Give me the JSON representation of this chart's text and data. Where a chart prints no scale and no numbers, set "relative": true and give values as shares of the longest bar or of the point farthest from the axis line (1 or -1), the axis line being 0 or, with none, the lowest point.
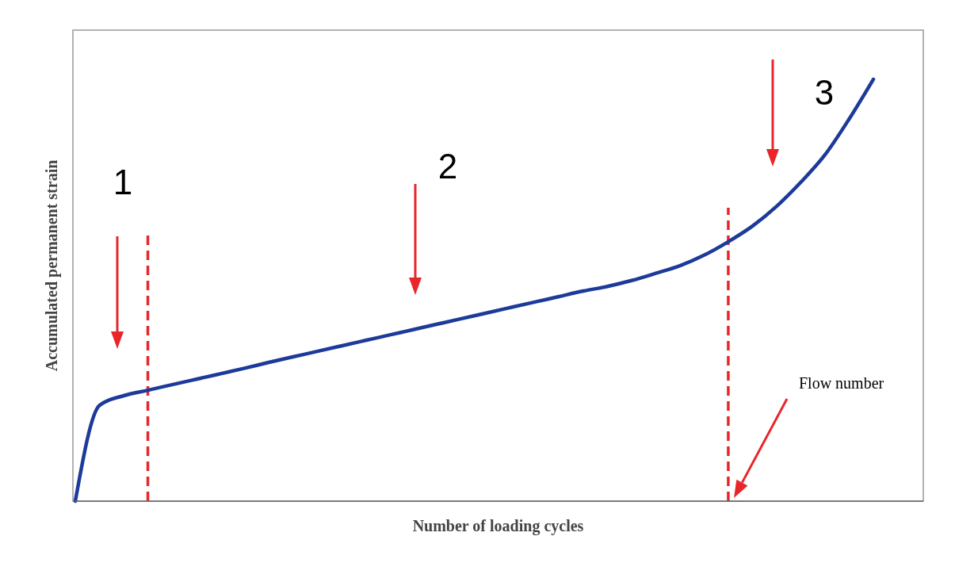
{
  "chart_data": {
    "type": "line",
    "relative": true,
    "xlabel": "Number of loading cycles",
    "ylabel": "Accumulated permanent strain",
    "categories": [
      null,
      null,
      null,
      null,
      null,
      null,
      null,
      null,
      null,
      null,
      null,
      null,
      null,
      null,
      null,
      null,
      null,
      null,
      null,
      null,
      null,
      null,
      null,
      null,
      null,
      null,
      null,
      null,
      null,
      null,
      null,
      null,
      null,
      null
    ],
    "series": [
      {
        "color": "#1c3a99",
        "values": [
          0,
          0.227,
          0.25,
          0.263,
          0.276,
          0.289,
          0.302,
          0.315,
          0.329,
          0.342,
          0.355,
          0.368,
          0.381,
          0.394,
          0.407,
          0.42,
          0.433,
          0.446,
          0.459,
          0.472,
          0.485,
          0.498,
          0.509,
          0.523,
          0.54,
          0.558,
          0.583,
          0.615,
          0.652,
          0.699,
          0.756,
          0.821,
          0.906,
          1
        ]
      }
    ],
    "line_style": "solid",
    "annotations": [
      "1",
      "2",
      "3",
      "Flow number"
    ]
  }
}
